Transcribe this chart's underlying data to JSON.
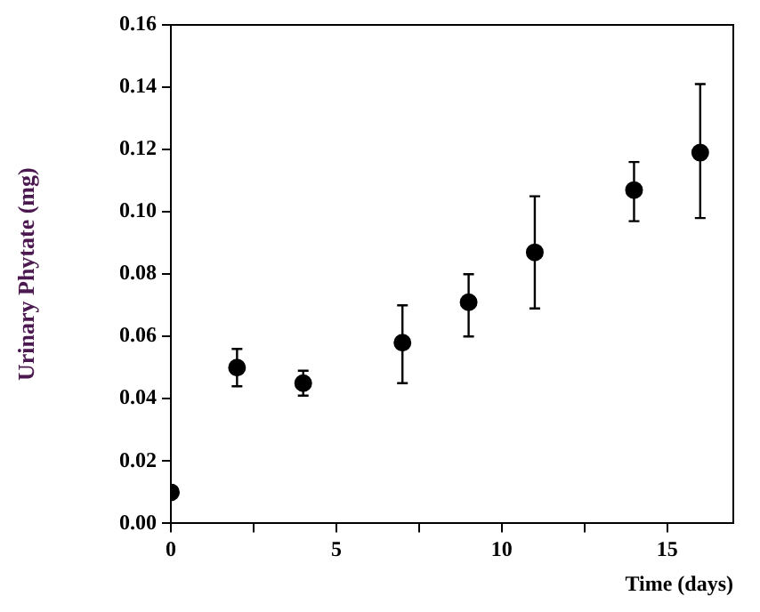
{
  "chart_data": {
    "type": "scatter",
    "xlabel": "Time (days)",
    "ylabel": "Urinary Phytate (mg)",
    "x": [
      0,
      2,
      4,
      7,
      9,
      11,
      14,
      16
    ],
    "series": [
      {
        "color": "#000000",
        "values": [
          0.01,
          0.05,
          0.045,
          0.058,
          0.071,
          0.087,
          0.107,
          0.119
        ],
        "errors": [
          null,
          [
            0.044,
            0.056
          ],
          [
            0.041,
            0.049
          ],
          [
            0.045,
            0.07
          ],
          [
            0.06,
            0.08
          ],
          [
            0.069,
            0.105
          ],
          [
            0.097,
            0.116
          ],
          [
            0.098,
            0.141
          ]
        ]
      }
    ],
    "xlim": [
      0,
      17
    ],
    "xticks": [
      0,
      {
        "value": 2.5,
        "label": null
      },
      5,
      {
        "value": 7.5,
        "label": null
      },
      10,
      {
        "value": 12.5,
        "label": null
      },
      15
    ],
    "ylim": [
      0,
      0.16
    ],
    "yticks": [
      {
        "value": 0,
        "label": "0.00"
      },
      0.02,
      0.04,
      0.06,
      0.08,
      {
        "value": 0.1,
        "label": "0.10"
      },
      0.12,
      0.14,
      0.16
    ],
    "marker": "circle",
    "grid": false,
    "legend": false
  }
}
